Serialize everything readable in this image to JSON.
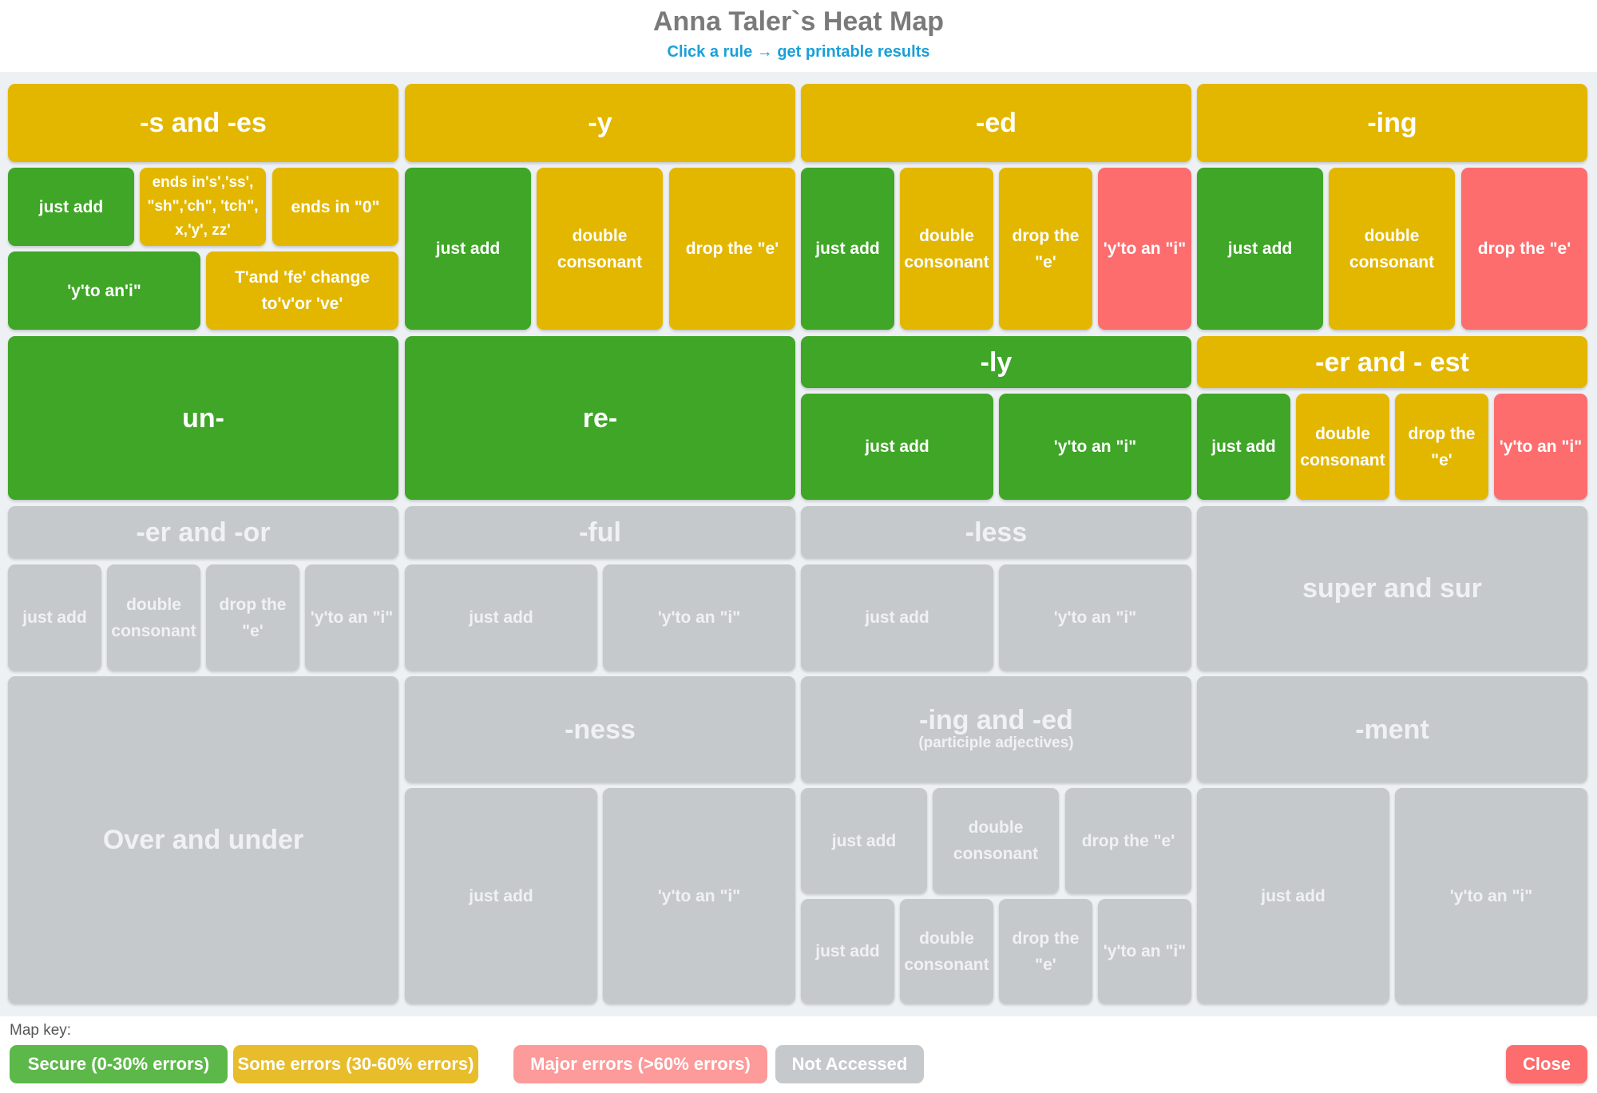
{
  "header": {
    "title": "Anna Taler`s Heat Map",
    "subtitle": "Click a rule → get printable results"
  },
  "colors": {
    "secure": "#3fa627",
    "some_errors": "#e3b700",
    "major_errors": "#fd6d6e",
    "not_accessed": "#c6c9cc"
  },
  "tiles": {
    "s_es": {
      "title": "-s and -es",
      "just_add": "just add",
      "ends_s": "ends in's','ss', \"sh\",'ch\", 'tch\", x,'y', zz'",
      "ends_o": "ends in \"0\"",
      "y_to_i": "'y'to an'i\"",
      "f_fe": "T'and 'fe' change to'v'or 've'"
    },
    "y": {
      "title": "-y",
      "just_add": "just add",
      "double": "double consonant",
      "drop_e": "drop the \"e'"
    },
    "ed": {
      "title": "-ed",
      "just_add": "just add",
      "double": "double consonant",
      "drop_e": "drop the \"e'",
      "y_to_i": "'y'to an \"i\""
    },
    "ing": {
      "title": "-ing",
      "just_add": "just add",
      "double": "double consonant",
      "drop_e": "drop the \"e'"
    },
    "un": {
      "title": "un-"
    },
    "re": {
      "title": "re-"
    },
    "ly": {
      "title": "-ly",
      "just_add": "just add",
      "y_to_i": "'y'to an \"i\""
    },
    "er_est": {
      "title": "-er and - est",
      "just_add": "just add",
      "double": "double consonant",
      "drop_e": "drop the \"e'",
      "y_to_i": "'y'to an \"i\""
    },
    "er_or": {
      "title": "-er and -or",
      "just_add": "just add",
      "double": "double consonant",
      "drop_e": "drop the \"e'",
      "y_to_i": "'y'to an \"i\""
    },
    "ful": {
      "title": "-ful",
      "just_add": "just add",
      "y_to_i": "'y'to an \"i\""
    },
    "less": {
      "title": "-less",
      "just_add": "just add",
      "y_to_i": "'y'to an \"i\""
    },
    "super": {
      "title": "super and sur"
    },
    "over": {
      "title": "Over and under"
    },
    "ness": {
      "title": "-ness",
      "just_add": "just add",
      "y_to_i": "'y'to an \"i\""
    },
    "ing_ed": {
      "title": "-ing and -ed",
      "subtitle": "(participle adjectives)",
      "r1_just_add": "just add",
      "r1_double": "double consonant",
      "r1_drop_e": "drop the \"e'",
      "r2_just_add": "just add",
      "r2_double": "double consonant",
      "r2_drop_e": "drop the \"e'",
      "r2_y_to_i": "'y'to an \"i\""
    },
    "ment": {
      "title": "-ment",
      "just_add": "just add",
      "y_to_i": "'y'to an \"i\""
    }
  },
  "key": {
    "label": "Map key:",
    "secure": "Secure (0-30% errors)",
    "some": "Some errors (30-60% errors)",
    "major": "Major errors (>60% errors)",
    "na": "Not Accessed"
  },
  "close_label": "Close"
}
